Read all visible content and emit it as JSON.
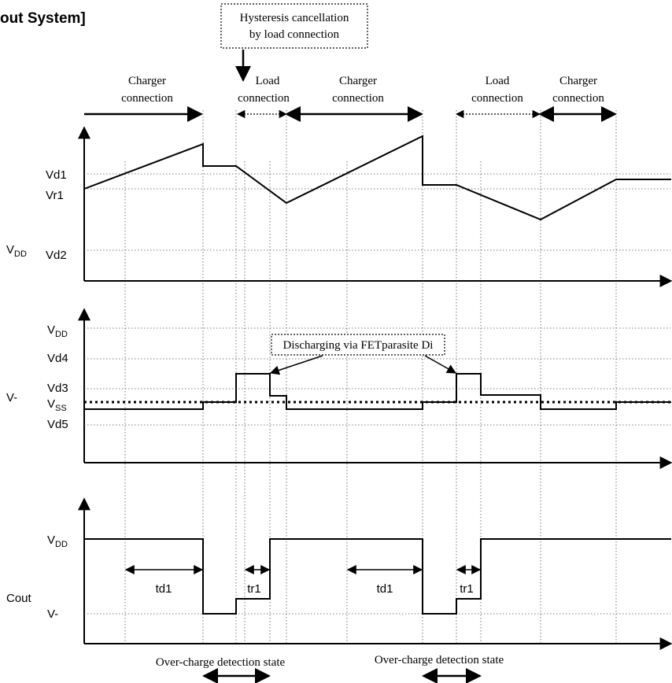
{
  "title": "out System]",
  "callouts": {
    "hysteresis_line1": "Hysteresis cancellation",
    "hysteresis_line2": "by load connection",
    "discharging": "Discharging via FETparasite Di"
  },
  "phases": [
    {
      "line1": "Charger",
      "line2": "connection"
    },
    {
      "line1": "Load",
      "line2": "connection"
    },
    {
      "line1": "Charger",
      "line2": "connection"
    },
    {
      "line1": "Load",
      "line2": "connection"
    },
    {
      "line1": "Charger",
      "line2": "connection"
    }
  ],
  "vdd_panel": {
    "axis_label": {
      "main": "V",
      "sub": "DD"
    },
    "levels": [
      "Vd1",
      "Vr1",
      "Vd2"
    ]
  },
  "vminus_panel": {
    "axis_label": "V-",
    "levels": {
      "vdd": {
        "main": "V",
        "sub": "DD"
      },
      "vd4": "Vd4",
      "vd3": "Vd3",
      "vss": {
        "main": "V",
        "sub": "SS"
      },
      "vd5": "Vd5"
    }
  },
  "cout_panel": {
    "axis_label": "Cout",
    "levels": {
      "vdd": {
        "main": "V",
        "sub": "DD"
      },
      "vminus": "V-"
    },
    "delays": [
      "td1",
      "tr1",
      "td1",
      "tr1"
    ]
  },
  "state_labels": [
    "Over-charge detection state",
    "Over-charge detection state"
  ]
}
